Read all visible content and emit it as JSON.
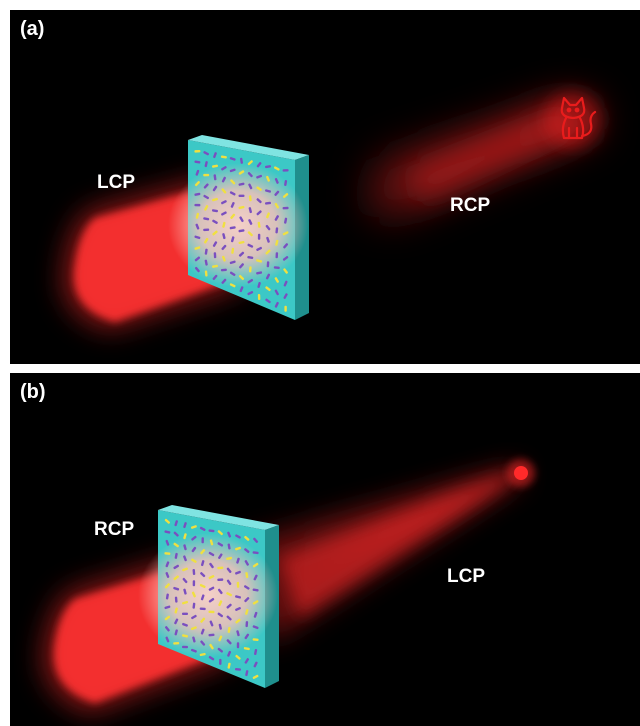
{
  "panels": [
    {
      "tag": "(a)",
      "input_label": "LCP",
      "output_label": "RCP",
      "output_image_icon": "cat-icon"
    },
    {
      "tag": "(b)",
      "input_label": "RCP",
      "output_label": "LCP",
      "output_focus_icon": "focal-spot-icon"
    }
  ],
  "colors": {
    "background": "#000000",
    "beam": "#ff2a2a",
    "metasurface": "#3cc8c6",
    "nanorod_yellow": "#f0e040",
    "nanorod_purple": "#7a4fc0"
  }
}
